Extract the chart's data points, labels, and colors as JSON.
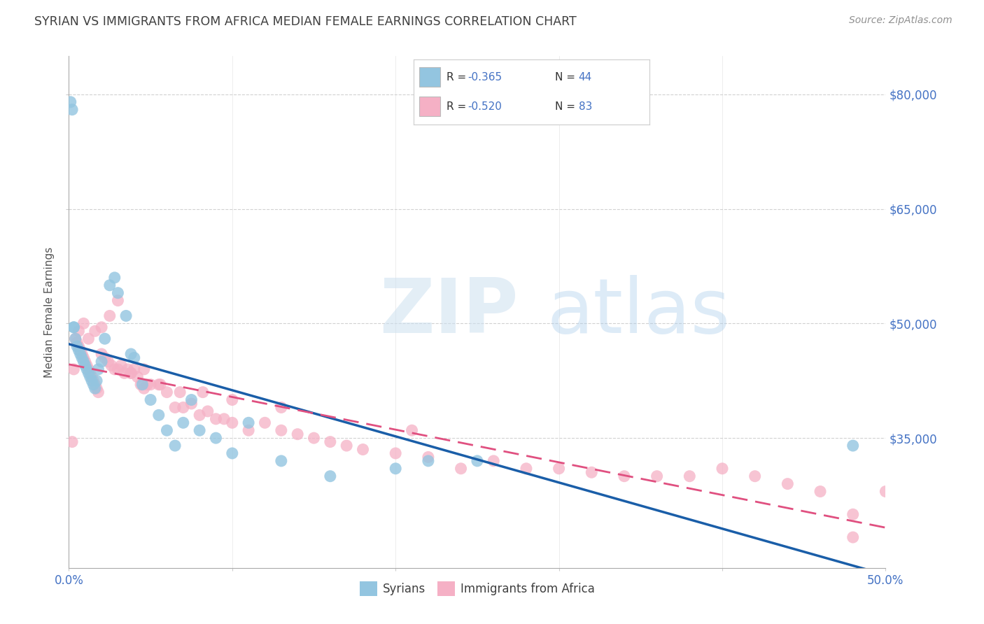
{
  "title": "SYRIAN VS IMMIGRANTS FROM AFRICA MEDIAN FEMALE EARNINGS CORRELATION CHART",
  "source": "Source: ZipAtlas.com",
  "ylabel": "Median Female Earnings",
  "xlim": [
    0.0,
    0.5
  ],
  "ylim": [
    18000,
    85000
  ],
  "yticks": [
    35000,
    50000,
    65000,
    80000
  ],
  "ytick_labels": [
    "$35,000",
    "$50,000",
    "$65,000",
    "$80,000"
  ],
  "xtick_left_label": "0.0%",
  "xtick_right_label": "50.0%",
  "blue_color": "#93c5e0",
  "pink_color": "#f5b0c5",
  "blue_line_color": "#1a5ea8",
  "pink_line_color": "#e05080",
  "axis_label_color": "#4472c4",
  "title_color": "#404040",
  "grid_color": "#cccccc",
  "r_syrians": -0.365,
  "n_syrians": 44,
  "r_africa": -0.52,
  "n_africa": 83,
  "syrians_x": [
    0.001,
    0.002,
    0.003,
    0.004,
    0.005,
    0.006,
    0.007,
    0.008,
    0.009,
    0.01,
    0.011,
    0.012,
    0.013,
    0.014,
    0.015,
    0.016,
    0.017,
    0.018,
    0.02,
    0.022,
    0.025,
    0.028,
    0.03,
    0.035,
    0.038,
    0.04,
    0.045,
    0.05,
    0.055,
    0.06,
    0.065,
    0.07,
    0.075,
    0.08,
    0.09,
    0.1,
    0.11,
    0.13,
    0.16,
    0.2,
    0.22,
    0.25,
    0.48,
    0.003
  ],
  "syrians_y": [
    79000,
    78000,
    49500,
    48000,
    47000,
    46500,
    46000,
    45500,
    45000,
    44500,
    44000,
    43500,
    43000,
    42500,
    42000,
    41500,
    42500,
    44000,
    45000,
    48000,
    55000,
    56000,
    54000,
    51000,
    46000,
    45500,
    42000,
    40000,
    38000,
    36000,
    34000,
    37000,
    40000,
    36000,
    35000,
    33000,
    37000,
    32000,
    30000,
    31000,
    32000,
    32000,
    34000,
    49500
  ],
  "africa_x": [
    0.002,
    0.003,
    0.004,
    0.005,
    0.006,
    0.007,
    0.008,
    0.009,
    0.01,
    0.011,
    0.012,
    0.013,
    0.014,
    0.015,
    0.016,
    0.017,
    0.018,
    0.02,
    0.022,
    0.024,
    0.026,
    0.028,
    0.03,
    0.032,
    0.034,
    0.036,
    0.038,
    0.04,
    0.042,
    0.044,
    0.046,
    0.048,
    0.05,
    0.055,
    0.06,
    0.065,
    0.07,
    0.075,
    0.08,
    0.085,
    0.09,
    0.095,
    0.1,
    0.11,
    0.12,
    0.13,
    0.14,
    0.15,
    0.16,
    0.17,
    0.18,
    0.2,
    0.22,
    0.24,
    0.26,
    0.28,
    0.3,
    0.32,
    0.34,
    0.36,
    0.38,
    0.4,
    0.42,
    0.44,
    0.46,
    0.48,
    0.5,
    0.006,
    0.009,
    0.012,
    0.016,
    0.02,
    0.025,
    0.03,
    0.038,
    0.046,
    0.056,
    0.068,
    0.082,
    0.1,
    0.13,
    0.21,
    0.48
  ],
  "africa_y": [
    34500,
    44000,
    48000,
    47500,
    47000,
    46500,
    46000,
    45500,
    45000,
    44500,
    44000,
    43500,
    43000,
    42500,
    42000,
    41500,
    41000,
    46000,
    45500,
    45000,
    44500,
    44000,
    44000,
    44500,
    43500,
    44000,
    43500,
    44000,
    43000,
    42000,
    41500,
    42000,
    42000,
    42000,
    41000,
    39000,
    39000,
    39500,
    38000,
    38500,
    37500,
    37500,
    37000,
    36000,
    37000,
    36000,
    35500,
    35000,
    34500,
    34000,
    33500,
    33000,
    32500,
    31000,
    32000,
    31000,
    31000,
    30500,
    30000,
    30000,
    30000,
    31000,
    30000,
    29000,
    28000,
    25000,
    28000,
    49000,
    50000,
    48000,
    49000,
    49500,
    51000,
    53000,
    43500,
    44000,
    42000,
    41000,
    41000,
    40000,
    39000,
    36000,
    22000
  ]
}
